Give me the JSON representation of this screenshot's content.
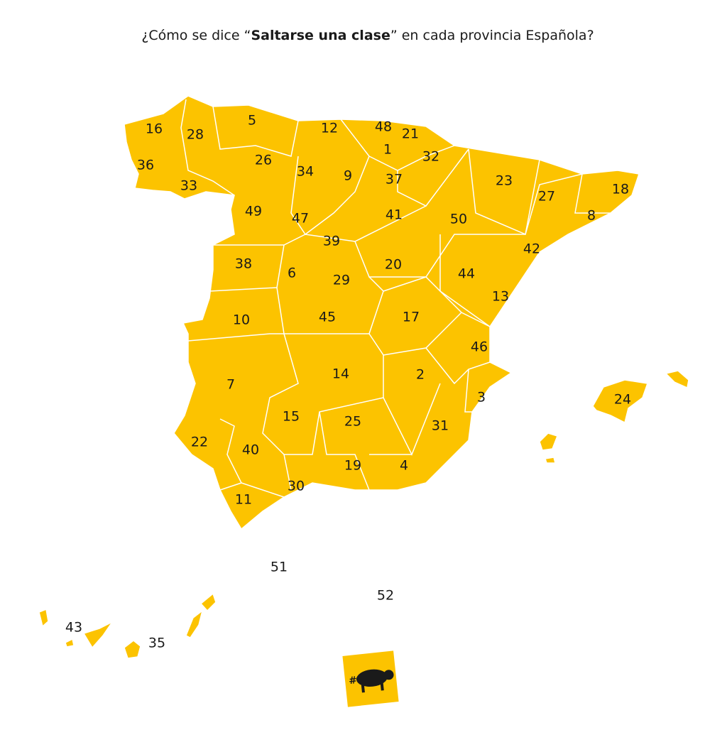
{
  "title": {
    "prefix": "¿Cómo se dice “",
    "bold": "Saltarse una clase",
    "suffix": "” en cada provincia Española?"
  },
  "labels": [
    "16",
    "28",
    "5",
    "12",
    "48",
    "21",
    "1",
    "32",
    "36",
    "26",
    "34",
    "9",
    "37",
    "23",
    "33",
    "27",
    "18",
    "49",
    "47",
    "41",
    "50",
    "8",
    "39",
    "42",
    "38",
    "6",
    "20",
    "44",
    "29",
    "13",
    "10",
    "45",
    "17",
    "46",
    "14",
    "2",
    "7",
    "3",
    "24",
    "15",
    "25",
    "31",
    "22",
    "40",
    "19",
    "4",
    "30",
    "11",
    "51",
    "52",
    "43",
    "35"
  ],
  "logo_text": "#"
}
